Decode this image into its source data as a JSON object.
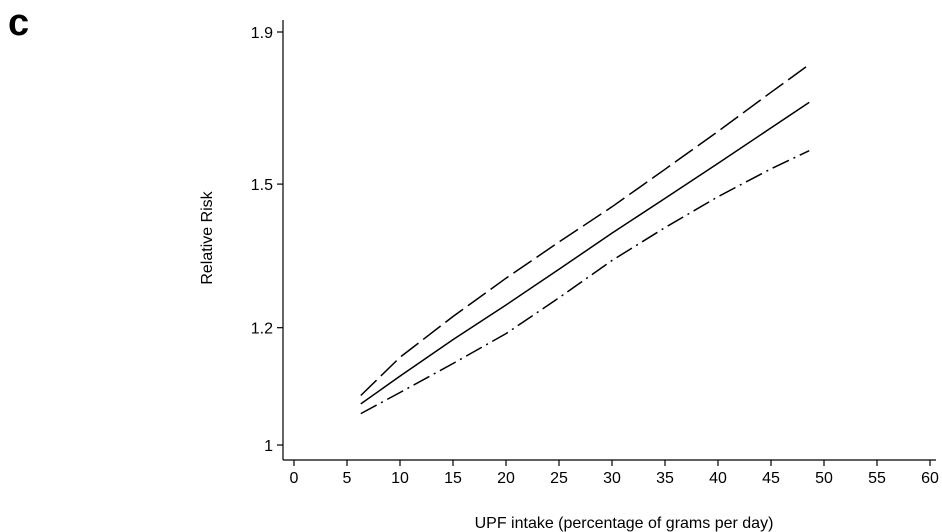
{
  "panel_label": "c",
  "chart_data": {
    "type": "line",
    "title": "",
    "xlabel": "UPF intake (percentage of grams per day)",
    "ylabel": "Relative Risk",
    "xlim": [
      0,
      60
    ],
    "y_scale": "log",
    "ylim": [
      0.98,
      1.92
    ],
    "x_ticks": [
      0,
      5,
      10,
      15,
      20,
      25,
      30,
      35,
      40,
      45,
      50,
      55,
      60
    ],
    "y_ticks": [
      1,
      1.2,
      1.5,
      1.9
    ],
    "y_tick_labels": [
      "1",
      "1.2",
      "1.5",
      "1.9"
    ],
    "grid": false,
    "legend": "none",
    "series": [
      {
        "style": "long-dash",
        "x": [
          6.3,
          10,
          15,
          20,
          25,
          30,
          35,
          40,
          45,
          48.6
        ],
        "y": [
          1.08,
          1.146,
          1.221,
          1.296,
          1.371,
          1.448,
          1.535,
          1.628,
          1.73,
          1.806
        ]
      },
      {
        "style": "solid",
        "x": [
          6.3,
          10,
          15,
          20,
          25,
          30,
          35,
          40,
          45,
          48.6
        ],
        "y": [
          1.066,
          1.113,
          1.178,
          1.243,
          1.314,
          1.39,
          1.467,
          1.549,
          1.637,
          1.703
        ]
      },
      {
        "style": "dash-dot",
        "x": [
          6.3,
          10,
          15,
          20,
          25,
          30,
          35,
          40,
          45,
          48.6
        ],
        "y": [
          1.05,
          1.085,
          1.135,
          1.189,
          1.257,
          1.332,
          1.402,
          1.471,
          1.536,
          1.58
        ]
      }
    ]
  }
}
